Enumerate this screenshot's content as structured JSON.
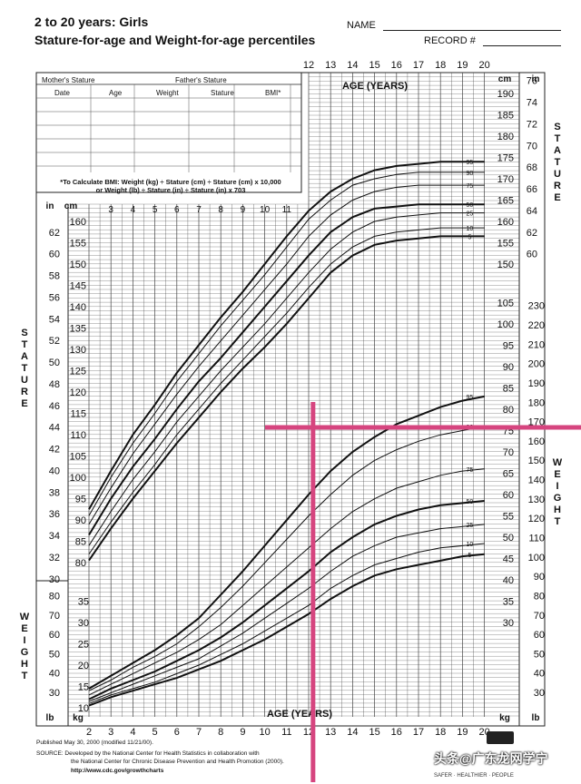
{
  "header": {
    "title": "2 to 20 years: Girls",
    "subtitle": "Stature-for-age and Weight-for-age percentiles",
    "name_label": "NAME",
    "record_label": "RECORD #"
  },
  "form": {
    "mother_stature": "Mother's Stature",
    "father_stature": "Father's Stature",
    "columns": [
      "Date",
      "Age",
      "Weight",
      "Stature",
      "BMI*"
    ],
    "bmi_note_1": "*To Calculate BMI: Weight (kg) ÷ Stature (cm) ÷ Stature (cm) x 10,000",
    "bmi_note_2": "or Weight (lb) ÷ Stature (in) ÷ Stature (in) x 703"
  },
  "footer": {
    "published": "Published May 30, 2000 (modified 11/21/00).",
    "source_1": "SOURCE: Developed by the National Center for Health Statistics in collaboration with",
    "source_2": "the National Center for Chronic Disease Prevention and Health Promotion (2000).",
    "url": "http://www.cdc.gov/growthcharts",
    "logo_text": "SAFER · HEALTHIER · PEOPLE",
    "watermark": "头条@广东龙网学宁"
  },
  "colors": {
    "marker": "#d6457f",
    "grid": "#444444",
    "curve": "#111111"
  },
  "chart_data": {
    "type": "line",
    "title": "Stature-for-age and Weight-for-age percentiles",
    "xlabel": "AGE (YEARS)",
    "age_ticks": [
      2,
      3,
      4,
      5,
      6,
      7,
      8,
      9,
      10,
      11,
      12,
      13,
      14,
      15,
      16,
      17,
      18,
      19,
      20
    ],
    "stature_cm_ticks_left": [
      80,
      85,
      90,
      95,
      100,
      105,
      110,
      115,
      120,
      125,
      130,
      135,
      140,
      145,
      150,
      155,
      160
    ],
    "stature_cm_ticks_right": [
      150,
      155,
      160,
      165,
      170,
      175,
      180,
      185,
      190
    ],
    "stature_in_ticks": [
      30,
      32,
      34,
      36,
      38,
      40,
      42,
      44,
      46,
      48,
      50,
      52,
      54,
      56,
      58,
      60,
      62,
      64,
      66,
      68,
      70,
      72,
      74,
      76
    ],
    "weight_kg_ticks_right": [
      30,
      35,
      40,
      45,
      50,
      55,
      60,
      65,
      70,
      75,
      80,
      85,
      90,
      95,
      100,
      105
    ],
    "weight_kg_ticks_left": [
      10,
      15,
      20,
      25,
      30,
      35
    ],
    "weight_lb_ticks": [
      30,
      40,
      50,
      60,
      70,
      80,
      90,
      100,
      110,
      120,
      130,
      140,
      150,
      160,
      170,
      180,
      190,
      200,
      210,
      220,
      230
    ],
    "ages": [
      2,
      3,
      4,
      5,
      6,
      7,
      8,
      9,
      10,
      11,
      12,
      13,
      14,
      15,
      16,
      17,
      18,
      19,
      20
    ],
    "stature_series": [
      {
        "name": "5",
        "values": [
          80.5,
          88,
          95,
          101.5,
          108,
          114,
          120,
          125.5,
          130.5,
          136,
          142,
          148,
          152,
          154.5,
          155.5,
          156,
          156.5,
          156.5,
          156.5
        ]
      },
      {
        "name": "10",
        "values": [
          82,
          89.5,
          96.5,
          103,
          110,
          116,
          122,
          127.5,
          133,
          138.5,
          144.5,
          150,
          154,
          156.5,
          157.5,
          158,
          158.5,
          158.5,
          158.5
        ]
      },
      {
        "name": "25",
        "values": [
          84,
          92,
          99.5,
          106,
          113,
          119,
          125,
          130.5,
          136,
          142,
          148,
          153.5,
          157.5,
          160,
          161,
          161.5,
          162,
          162,
          162
        ]
      },
      {
        "name": "50",
        "values": [
          86.5,
          95,
          102.5,
          109,
          116,
          122.5,
          128,
          134,
          140,
          146,
          152,
          157.5,
          161,
          163,
          163.5,
          164,
          164,
          164,
          164
        ]
      },
      {
        "name": "75",
        "values": [
          89,
          97.5,
          105.5,
          112.5,
          119.5,
          126,
          132,
          138,
          144,
          150,
          156.5,
          161.5,
          165,
          167,
          168,
          168.5,
          168.5,
          168.5,
          168.5
        ]
      },
      {
        "name": "90",
        "values": [
          91,
          100,
          108,
          115,
          122.5,
          129,
          135.5,
          141.5,
          147.5,
          154,
          160.5,
          165,
          168.5,
          170,
          171,
          171.5,
          171.5,
          171.5,
          171.5
        ]
      },
      {
        "name": "95",
        "values": [
          92.5,
          101.5,
          110,
          117,
          124.5,
          131,
          137.5,
          143.5,
          150,
          156.5,
          162.5,
          167,
          170,
          172,
          173,
          173.5,
          174,
          174,
          174
        ]
      }
    ],
    "weight_series": [
      {
        "name": "5",
        "values": [
          10.5,
          12.5,
          14,
          15.5,
          17,
          19,
          21,
          23.5,
          26,
          29,
          32,
          35.5,
          38.5,
          41,
          42.5,
          43.5,
          44.5,
          45.5,
          46
        ]
      },
      {
        "name": "10",
        "values": [
          11,
          13,
          14.5,
          16,
          18,
          20,
          22.5,
          25,
          28,
          31,
          34,
          38,
          41,
          43.5,
          45,
          46.5,
          47.5,
          48,
          48.5
        ]
      },
      {
        "name": "25",
        "values": [
          11.5,
          13.5,
          15.5,
          17.5,
          19.5,
          21.5,
          24.5,
          27.5,
          31,
          34.5,
          38,
          42,
          45.5,
          48,
          50,
          51,
          52,
          52.5,
          53
        ]
      },
      {
        "name": "50",
        "values": [
          12,
          14.5,
          16.5,
          18.5,
          21,
          23.5,
          26.5,
          30,
          34,
          38,
          42,
          46.5,
          50,
          53,
          55,
          56.5,
          57.5,
          58,
          58.5
        ]
      },
      {
        "name": "75",
        "values": [
          13,
          15.5,
          18,
          20.5,
          23,
          26,
          29.5,
          34,
          38.5,
          43,
          47.5,
          52,
          56,
          59,
          61.5,
          63,
          64.5,
          65.5,
          66
        ]
      },
      {
        "name": "90",
        "values": [
          14,
          16.5,
          19.5,
          22,
          25,
          29,
          33.5,
          38.5,
          44,
          49.5,
          55,
          60,
          64.5,
          68,
          70.5,
          72.5,
          74,
          75,
          76
        ]
      },
      {
        "name": "95",
        "values": [
          14.5,
          17.5,
          20.5,
          23.5,
          27,
          31,
          36.5,
          42,
          48,
          54,
          60,
          65.5,
          70,
          73.5,
          76.5,
          78.5,
          80.5,
          82,
          83
        ]
      }
    ],
    "marker_age": 12.2,
    "marker_weight_lb": 167
  }
}
